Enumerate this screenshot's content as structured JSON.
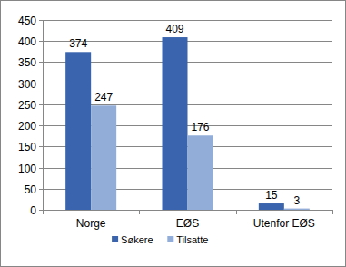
{
  "chart_data": {
    "type": "bar",
    "categories": [
      "Norge",
      "EØS",
      "Utenfor EØS"
    ],
    "series": [
      {
        "name": "Søkere",
        "color": "#3a64ad",
        "values": [
          374,
          409,
          15
        ]
      },
      {
        "name": "Tilsatte",
        "color": "#93add9",
        "values": [
          247,
          176,
          3
        ]
      }
    ],
    "ylim": [
      0,
      450
    ],
    "yticks": [
      0,
      50,
      100,
      150,
      200,
      250,
      300,
      350,
      400,
      450
    ],
    "grid": true,
    "data_labels": true,
    "legend": "bottom"
  }
}
